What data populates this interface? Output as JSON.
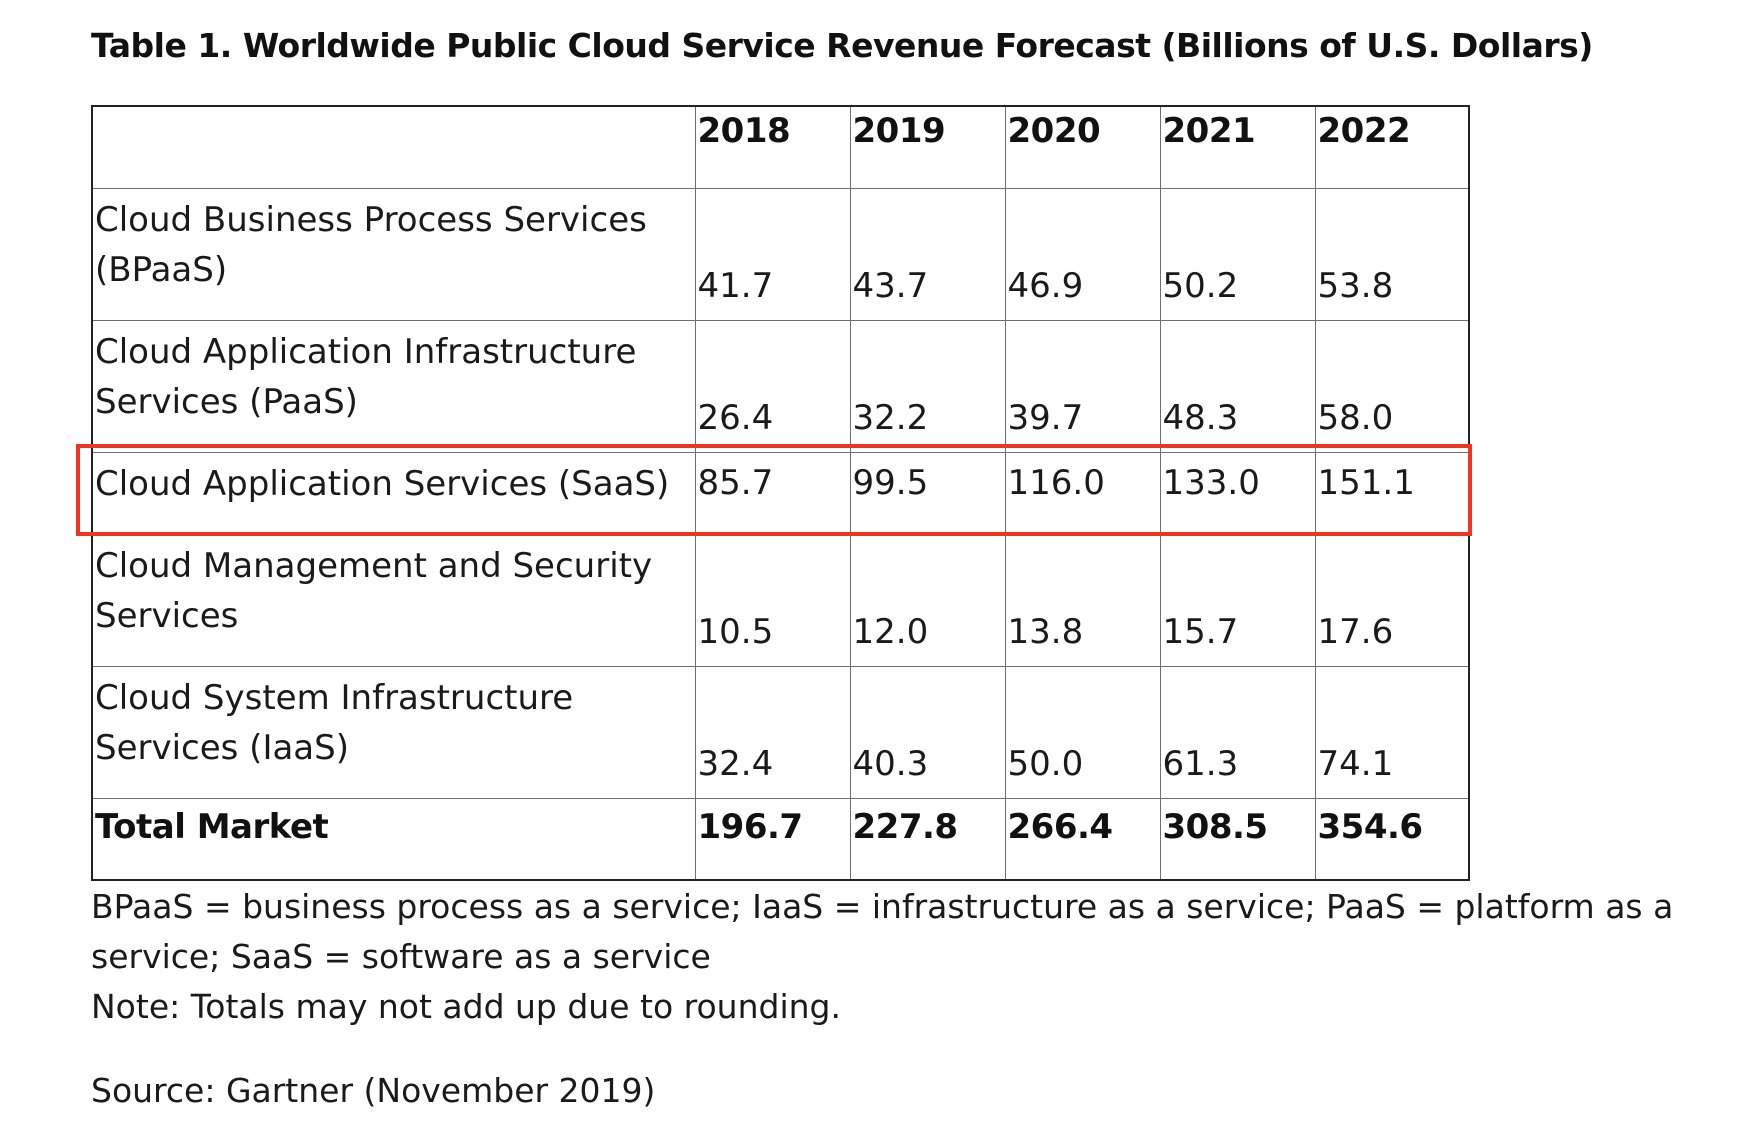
{
  "title": "Table 1. Worldwide Public Cloud Service Revenue Forecast (Billions of U.S. Dollars)",
  "table": {
    "years": [
      "2018",
      "2019",
      "2020",
      "2021",
      "2022"
    ],
    "rows": [
      {
        "label": "Cloud Business Process Services (BPaaS)",
        "values": [
          "41.7",
          "43.7",
          "46.9",
          "50.2",
          "53.8"
        ]
      },
      {
        "label": "Cloud Application Infrastructure Services (PaaS)",
        "values": [
          "26.4",
          "32.2",
          "39.7",
          "48.3",
          "58.0"
        ]
      },
      {
        "label": "Cloud Application Services (SaaS)",
        "values": [
          "85.7",
          "99.5",
          "116.0",
          "133.0",
          "151.1"
        ]
      },
      {
        "label": "Cloud Management and Security Services",
        "values": [
          "10.5",
          "12.0",
          "13.8",
          "15.7",
          "17.6"
        ]
      },
      {
        "label": "Cloud System Infrastructure Services (IaaS)",
        "values": [
          "32.4",
          "40.3",
          "50.0",
          "61.3",
          "74.1"
        ]
      }
    ],
    "total": {
      "label": "Total Market",
      "values": [
        "196.7",
        "227.8",
        "266.4",
        "308.5",
        "354.6"
      ]
    }
  },
  "highlight_color": "#f0341f",
  "notes": {
    "abbreviations": "BPaaS = business process as a service; IaaS = infrastructure as a service; PaaS = platform as a service; SaaS = software as a service",
    "rounding": "Note: Totals may not add up due to rounding."
  },
  "source": "Source: Gartner (November 2019)"
}
